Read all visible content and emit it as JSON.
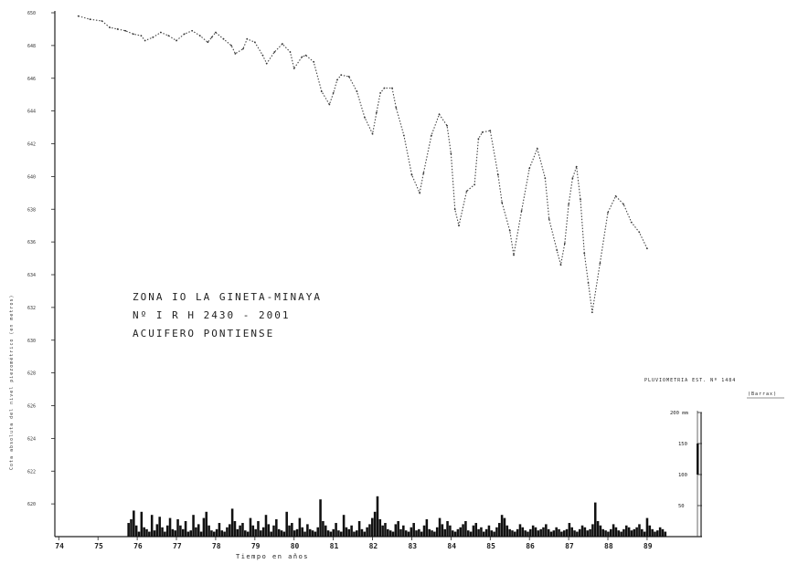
{
  "chart_data": {
    "type": "line",
    "xlabel": "Tiempo en años",
    "ylabel": "Cota absoluta del nivel piezométrico (en metros)",
    "annotation": [
      "ZONA IO  LA GINETA-MINAYA",
      "Nº I R H  2430 - 2001",
      "ACUIFERO  PONTIENSE"
    ],
    "x_ticks": [
      "74",
      "75",
      "76",
      "77",
      "78",
      "79",
      "80",
      "81",
      "82",
      "83",
      "84",
      "85",
      "86",
      "87",
      "88",
      "89"
    ],
    "y_ticks": [
      "650",
      "648",
      "646",
      "644",
      "642",
      "640",
      "638",
      "636",
      "634",
      "632",
      "630",
      "628",
      "626",
      "624",
      "622",
      "620"
    ],
    "ylim": [
      618,
      650
    ],
    "xlim": [
      73.9,
      90.4
    ],
    "series": [
      {
        "x": [
          74.5,
          74.8,
          75.1,
          75.3,
          75.5,
          75.7,
          75.9,
          76.1,
          76.2,
          76.4,
          76.6,
          76.8,
          77.0,
          77.2,
          77.4,
          77.6,
          77.8,
          77.9,
          78.0,
          78.2,
          78.4,
          78.5,
          78.7,
          78.8,
          79.0,
          79.2,
          79.3,
          79.5,
          79.7,
          79.9,
          80.0,
          80.2,
          80.3,
          80.5,
          80.7,
          80.9,
          81.0,
          81.1,
          81.2,
          81.4,
          81.6,
          81.8,
          82.0,
          82.1,
          82.2,
          82.3,
          82.5,
          82.6,
          82.8,
          83.0,
          83.2,
          83.3,
          83.5,
          83.7,
          83.9,
          84.0,
          84.1,
          84.2,
          84.4,
          84.6,
          84.7,
          84.8,
          85.0,
          85.2,
          85.3,
          85.5,
          85.6,
          85.8,
          86.0,
          86.2,
          86.4,
          86.5,
          86.7,
          86.8,
          86.9,
          87.0,
          87.1,
          87.2,
          87.3,
          87.4,
          87.5,
          87.6,
          87.8,
          88.0,
          88.2,
          88.4,
          88.6,
          88.8,
          89.0
        ],
        "y": [
          649.8,
          649.6,
          649.5,
          649.1,
          649.0,
          648.9,
          648.7,
          648.6,
          648.3,
          648.5,
          648.8,
          648.6,
          648.3,
          648.7,
          648.9,
          648.6,
          648.2,
          648.5,
          648.8,
          648.4,
          648.0,
          647.5,
          647.8,
          648.4,
          648.2,
          647.4,
          646.9,
          647.6,
          648.1,
          647.6,
          646.6,
          647.3,
          647.4,
          647.0,
          645.2,
          644.4,
          645.1,
          645.9,
          646.2,
          646.1,
          645.2,
          643.6,
          642.6,
          643.9,
          645.1,
          645.4,
          645.4,
          644.2,
          642.5,
          640.1,
          639.0,
          640.2,
          642.5,
          643.8,
          643.1,
          641.4,
          638.0,
          637.0,
          639.1,
          639.5,
          642.3,
          642.7,
          642.8,
          640.1,
          638.4,
          636.7,
          635.2,
          637.9,
          640.5,
          641.7,
          639.9,
          637.4,
          635.5,
          634.6,
          635.9,
          638.3,
          639.9,
          640.6,
          638.6,
          635.3,
          633.5,
          631.7,
          634.7,
          637.8,
          638.8,
          638.3,
          637.2,
          636.6,
          635.6
        ]
      }
    ],
    "rainfall": {
      "title": "PLUVIOMETRIA  EST. Nº 1484",
      "subtitle": "(Barrax)",
      "scale_ticks": [
        "200 mm",
        "150",
        "100",
        "50"
      ],
      "values": [
        22,
        28,
        42,
        18,
        8,
        40,
        15,
        12,
        8,
        35,
        10,
        20,
        32,
        15,
        8,
        18,
        30,
        12,
        10,
        28,
        18,
        12,
        25,
        8,
        10,
        35,
        15,
        20,
        8,
        30,
        40,
        18,
        10,
        8,
        12,
        22,
        10,
        8,
        15,
        20,
        45,
        25,
        12,
        18,
        22,
        10,
        8,
        30,
        18,
        12,
        25,
        10,
        15,
        35,
        20,
        8,
        18,
        28,
        12,
        10,
        8,
        40,
        18,
        22,
        10,
        12,
        30,
        15,
        8,
        20,
        12,
        10,
        8,
        15,
        60,
        25,
        18,
        10,
        8,
        12,
        22,
        10,
        8,
        35,
        15,
        12,
        18,
        8,
        10,
        25,
        12,
        8,
        15,
        20,
        30,
        40,
        65,
        28,
        18,
        22,
        12,
        10,
        8,
        20,
        25,
        12,
        18,
        10,
        8,
        15,
        22,
        10,
        12,
        8,
        18,
        28,
        12,
        10,
        8,
        15,
        30,
        20,
        12,
        25,
        18,
        10,
        8,
        12,
        15,
        20,
        25,
        10,
        8,
        18,
        22,
        12,
        15,
        8,
        12,
        18,
        10,
        8,
        15,
        22,
        35,
        30,
        18,
        12,
        10,
        8,
        12,
        20,
        15,
        10,
        8,
        12,
        18,
        15,
        10,
        12,
        15,
        20,
        12,
        8,
        10,
        15,
        12,
        8,
        10,
        12,
        22,
        15,
        10,
        8,
        12,
        18,
        15,
        10,
        12,
        20,
        55,
        25,
        18,
        12,
        10,
        8,
        12,
        20,
        15,
        10,
        8,
        12,
        18,
        15,
        10,
        12,
        15,
        20,
        12,
        8,
        30,
        18,
        12,
        8,
        10,
        15,
        12,
        8
      ]
    }
  }
}
